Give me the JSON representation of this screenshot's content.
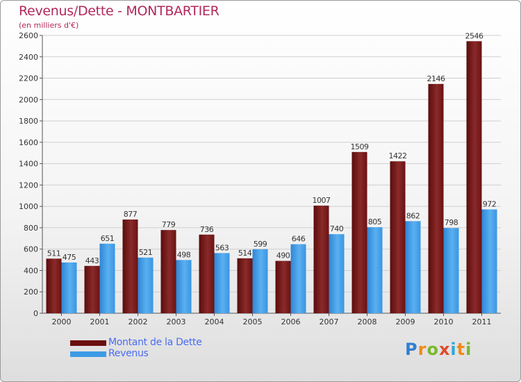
{
  "header": {
    "title": "Revenus/Dette - MONTBARTIER",
    "subtitle": "(en milliers d'€)"
  },
  "chart_data": {
    "type": "bar",
    "title": "Revenus/Dette - MONTBARTIER",
    "subtitle": "(en milliers d'€)",
    "xlabel": "",
    "ylabel": "",
    "ylim": [
      0,
      2600
    ],
    "yticks": [
      0,
      200,
      400,
      600,
      800,
      1000,
      1200,
      1400,
      1600,
      1800,
      2000,
      2200,
      2400,
      2600
    ],
    "categories": [
      "2000",
      "2001",
      "2002",
      "2003",
      "2004",
      "2005",
      "2006",
      "2007",
      "2008",
      "2009",
      "2010",
      "2011"
    ],
    "series": [
      {
        "name": "Montant de la Dette",
        "color": "#7a1c1c",
        "values": [
          511,
          443,
          877,
          779,
          736,
          514,
          490,
          1007,
          1509,
          1422,
          2146,
          2546
        ]
      },
      {
        "name": "Revenus",
        "color": "#3d9be6",
        "values": [
          475,
          651,
          521,
          498,
          563,
          599,
          646,
          740,
          805,
          862,
          798,
          972
        ]
      }
    ],
    "legend_position": "bottom-left",
    "grid": true
  },
  "legend": {
    "items": [
      {
        "label": "Montant de la Dette",
        "color": "#6b0f0f"
      },
      {
        "label": "Revenus",
        "color": "#3d9be6"
      }
    ]
  },
  "logo": {
    "parts": [
      "P",
      "r",
      "o",
      "x",
      "i",
      "t",
      "i"
    ]
  }
}
